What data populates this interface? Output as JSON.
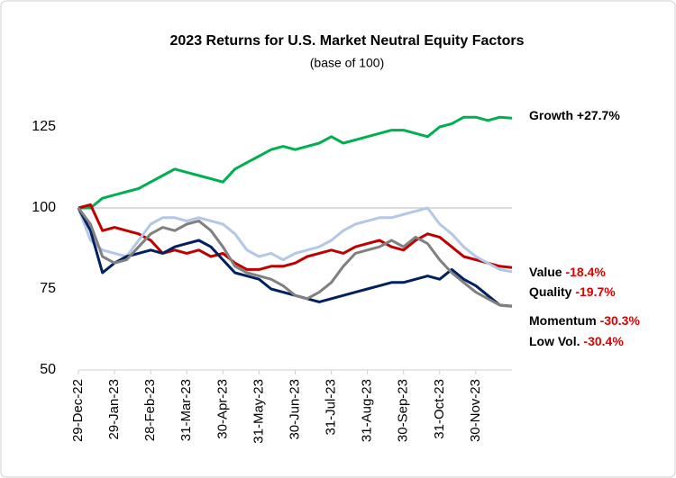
{
  "chart_data": {
    "type": "line",
    "title": "2023 Returns for U.S. Market Neutral Equity Factors",
    "subtitle": "(base of 100)",
    "categories": [
      "29-Dec-22",
      null,
      null,
      "29-Jan-23",
      null,
      null,
      "28-Feb-23",
      null,
      null,
      "31-Mar-23",
      null,
      null,
      "30-Apr-23",
      null,
      null,
      "31-May-23",
      null,
      null,
      "30-Jun-23",
      null,
      null,
      "31-Jul-23",
      null,
      null,
      "31-Aug-23",
      null,
      null,
      "30-Sep-23",
      null,
      null,
      "31-Oct-23",
      null,
      null,
      "30-Nov-23",
      null,
      null,
      null
    ],
    "series": [
      {
        "name": "Growth",
        "label": "+27.7%",
        "label_color": "#000000",
        "color": "#00b050",
        "values": [
          100,
          100,
          103,
          104,
          105,
          106,
          108,
          110,
          112,
          111,
          110,
          109,
          108,
          112,
          114,
          116,
          118,
          119,
          118,
          119,
          120,
          122,
          120,
          121,
          122,
          123,
          124,
          124,
          123,
          122,
          125,
          126,
          128,
          128,
          127,
          128,
          127.7
        ]
      },
      {
        "name": "Value",
        "label": "-18.4%",
        "label_color": "#e00000",
        "color": "#c00000",
        "values": [
          100,
          101,
          93,
          94,
          93,
          92,
          90,
          86,
          87,
          86,
          87,
          85,
          86,
          83,
          81,
          81,
          82,
          82,
          83,
          85,
          86,
          87,
          86,
          88,
          89,
          90,
          88,
          87,
          90,
          92,
          91,
          88,
          85,
          84,
          83,
          82,
          81.6
        ]
      },
      {
        "name": "Quality",
        "label": "-19.7%",
        "label_color": "#e00000",
        "color": "#b4c7e7",
        "values": [
          100,
          90,
          87,
          86,
          85,
          90,
          95,
          97,
          97,
          96,
          97,
          96,
          95,
          92,
          87,
          85,
          86,
          84,
          86,
          87,
          88,
          90,
          93,
          95,
          96,
          97,
          97,
          98,
          99,
          100,
          95,
          92,
          88,
          85,
          83,
          81,
          80.3
        ]
      },
      {
        "name": "Momentum",
        "label": "-30.3%",
        "label_color": "#e00000",
        "color": "#002060",
        "values": [
          100,
          93,
          80,
          83,
          85,
          86,
          87,
          86,
          88,
          89,
          90,
          88,
          84,
          80,
          79,
          78,
          75,
          74,
          73,
          72,
          71,
          72,
          73,
          74,
          75,
          76,
          77,
          77,
          78,
          79,
          78,
          81,
          78,
          76,
          73,
          70,
          69.7
        ]
      },
      {
        "name": "Low Vol.",
        "label": "-30.4%",
        "label_color": "#e00000",
        "color": "#808080",
        "values": [
          100,
          95,
          85,
          83,
          84,
          88,
          92,
          94,
          93,
          95,
          96,
          93,
          88,
          82,
          80,
          79,
          78,
          76,
          73,
          72,
          74,
          77,
          82,
          86,
          87,
          88,
          90,
          88,
          91,
          89,
          84,
          80,
          77,
          74,
          72,
          70,
          69.6
        ]
      }
    ],
    "ylim": [
      50,
      135
    ],
    "yticks": [
      50,
      75,
      100,
      125
    ],
    "reference_line": 100,
    "grid": false
  }
}
